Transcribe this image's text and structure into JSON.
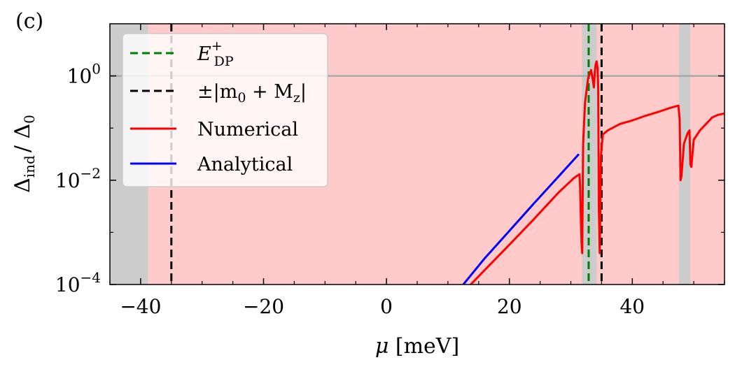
{
  "panel_label": "(c)",
  "chart_data": {
    "type": "line",
    "xlabel_var": "μ",
    "xlabel_unit": " [meV]",
    "ylabel_main": "Δ",
    "ylabel_sub": "ind",
    "ylabel_den": "/ Δ",
    "ylabel_den_sub": "0",
    "xlim": [
      -45,
      55
    ],
    "ylim_log10": [
      -4,
      1
    ],
    "yscale": "log",
    "x_ticks": [
      -40,
      -20,
      0,
      20,
      40
    ],
    "x_tick_labels": [
      "−40",
      "−20",
      "0",
      "20",
      "40"
    ],
    "y_ticks_log10": [
      -4,
      -2,
      0
    ],
    "y_tick_labels": [
      {
        "base": "10",
        "exp": "−4"
      },
      {
        "base": "10",
        "exp": "−2"
      },
      {
        "base": "10",
        "exp": "0"
      }
    ],
    "background_color": "#fecaca",
    "gray_band_color": "#cccccc",
    "gray_bands": [
      [
        -45,
        -38.8
      ],
      [
        31.8,
        34.2
      ],
      [
        47.6,
        49.4
      ]
    ],
    "hline_y": 1,
    "hline_color": "#a9a9a9",
    "vlines": [
      {
        "x": 32.9,
        "color": "#008000",
        "series": "dp"
      },
      {
        "x": -35,
        "color": "#000000",
        "series": "mass"
      },
      {
        "x": 35,
        "color": "#000000",
        "series": "mass"
      }
    ],
    "series": [
      {
        "key": "numerical",
        "name": "Numerical",
        "color": "#ff0000",
        "points": [
          [
            13.7,
            0.0001
          ],
          [
            16,
            0.00019
          ],
          [
            20,
            0.00058
          ],
          [
            24,
            0.0018
          ],
          [
            28,
            0.0058
          ],
          [
            30.5,
            0.011
          ],
          [
            31.4,
            0.013
          ],
          [
            31.5,
            0.008
          ],
          [
            31.65,
            0.0015
          ],
          [
            31.75,
            0.0006
          ],
          [
            31.85,
            0.0004
          ],
          [
            32.0,
            0.05
          ],
          [
            32.3,
            0.3
          ],
          [
            32.8,
            0.9
          ],
          [
            33.3,
            1.3
          ],
          [
            33.6,
            0.8
          ],
          [
            33.75,
            0.6
          ],
          [
            33.9,
            1.2
          ],
          [
            34.05,
            1.7
          ],
          [
            34.2,
            1.9
          ],
          [
            34.35,
            1.4
          ],
          [
            34.45,
            0.6
          ],
          [
            34.55,
            0.003
          ],
          [
            34.7,
            0.0004
          ],
          [
            34.9,
            0.03
          ],
          [
            35.2,
            0.075
          ],
          [
            36,
            0.09
          ],
          [
            38,
            0.12
          ],
          [
            40,
            0.14
          ],
          [
            42,
            0.17
          ],
          [
            44,
            0.2
          ],
          [
            46,
            0.24
          ],
          [
            47.5,
            0.27
          ],
          [
            47.7,
            0.15
          ],
          [
            47.85,
            0.01
          ],
          [
            48.0,
            0.012
          ],
          [
            48.4,
            0.05
          ],
          [
            49.0,
            0.08
          ],
          [
            49.3,
            0.09
          ],
          [
            49.45,
            0.02
          ],
          [
            49.6,
            0.018
          ],
          [
            50,
            0.06
          ],
          [
            51,
            0.09
          ],
          [
            52,
            0.12
          ],
          [
            53,
            0.16
          ],
          [
            54,
            0.18
          ],
          [
            55,
            0.19
          ]
        ]
      },
      {
        "key": "analytical",
        "name": "Analytical",
        "color": "#0000ff",
        "points": [
          [
            12.5,
            0.0001
          ],
          [
            16,
            0.00032
          ],
          [
            20,
            0.00107
          ],
          [
            24,
            0.0036
          ],
          [
            28,
            0.0118
          ],
          [
            31.3,
            0.0316
          ]
        ]
      }
    ],
    "legend": {
      "position": "upper-left",
      "entries": [
        {
          "label_var": "E",
          "label_sup": "+",
          "label_sub": "DP",
          "color": "#008000",
          "dash": true
        },
        {
          "label": "±|m",
          "label_sub": "0",
          "label_rest": " + M",
          "label_sub2": "z",
          "label_end": "|",
          "color": "#000000",
          "dash": true
        },
        {
          "label": "Numerical",
          "color": "#ff0000",
          "dash": false
        },
        {
          "label": "Analytical",
          "color": "#0000ff",
          "dash": false
        }
      ]
    }
  }
}
